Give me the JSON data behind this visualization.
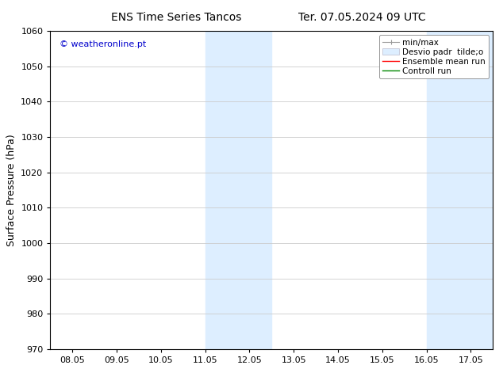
{
  "title_left": "ENS Time Series Tancos",
  "title_right": "Ter. 07.05.2024 09 UTC",
  "ylabel": "Surface Pressure (hPa)",
  "ylim": [
    970,
    1060
  ],
  "yticks": [
    970,
    980,
    990,
    1000,
    1010,
    1020,
    1030,
    1040,
    1050,
    1060
  ],
  "xtick_labels": [
    "08.05",
    "09.05",
    "10.05",
    "11.05",
    "12.05",
    "13.05",
    "14.05",
    "15.05",
    "16.05",
    "17.05"
  ],
  "xtick_positions": [
    0,
    1,
    2,
    3,
    4,
    5,
    6,
    7,
    8,
    9
  ],
  "xlim": [
    -0.5,
    9.5
  ],
  "shaded_regions": [
    {
      "x_start": 3.0,
      "x_end": 4.5,
      "color": "#ddeeff"
    },
    {
      "x_start": 8.0,
      "x_end": 9.5,
      "color": "#ddeeff"
    }
  ],
  "watermark": "© weatheronline.pt",
  "watermark_color": "#0000cc",
  "bg_color": "#ffffff",
  "plot_bg_color": "#ffffff",
  "grid_color": "#cccccc",
  "tick_color": "#000000",
  "axis_color": "#000000",
  "title_fontsize": 10,
  "label_fontsize": 9,
  "tick_fontsize": 8,
  "legend_fontsize": 7.5
}
